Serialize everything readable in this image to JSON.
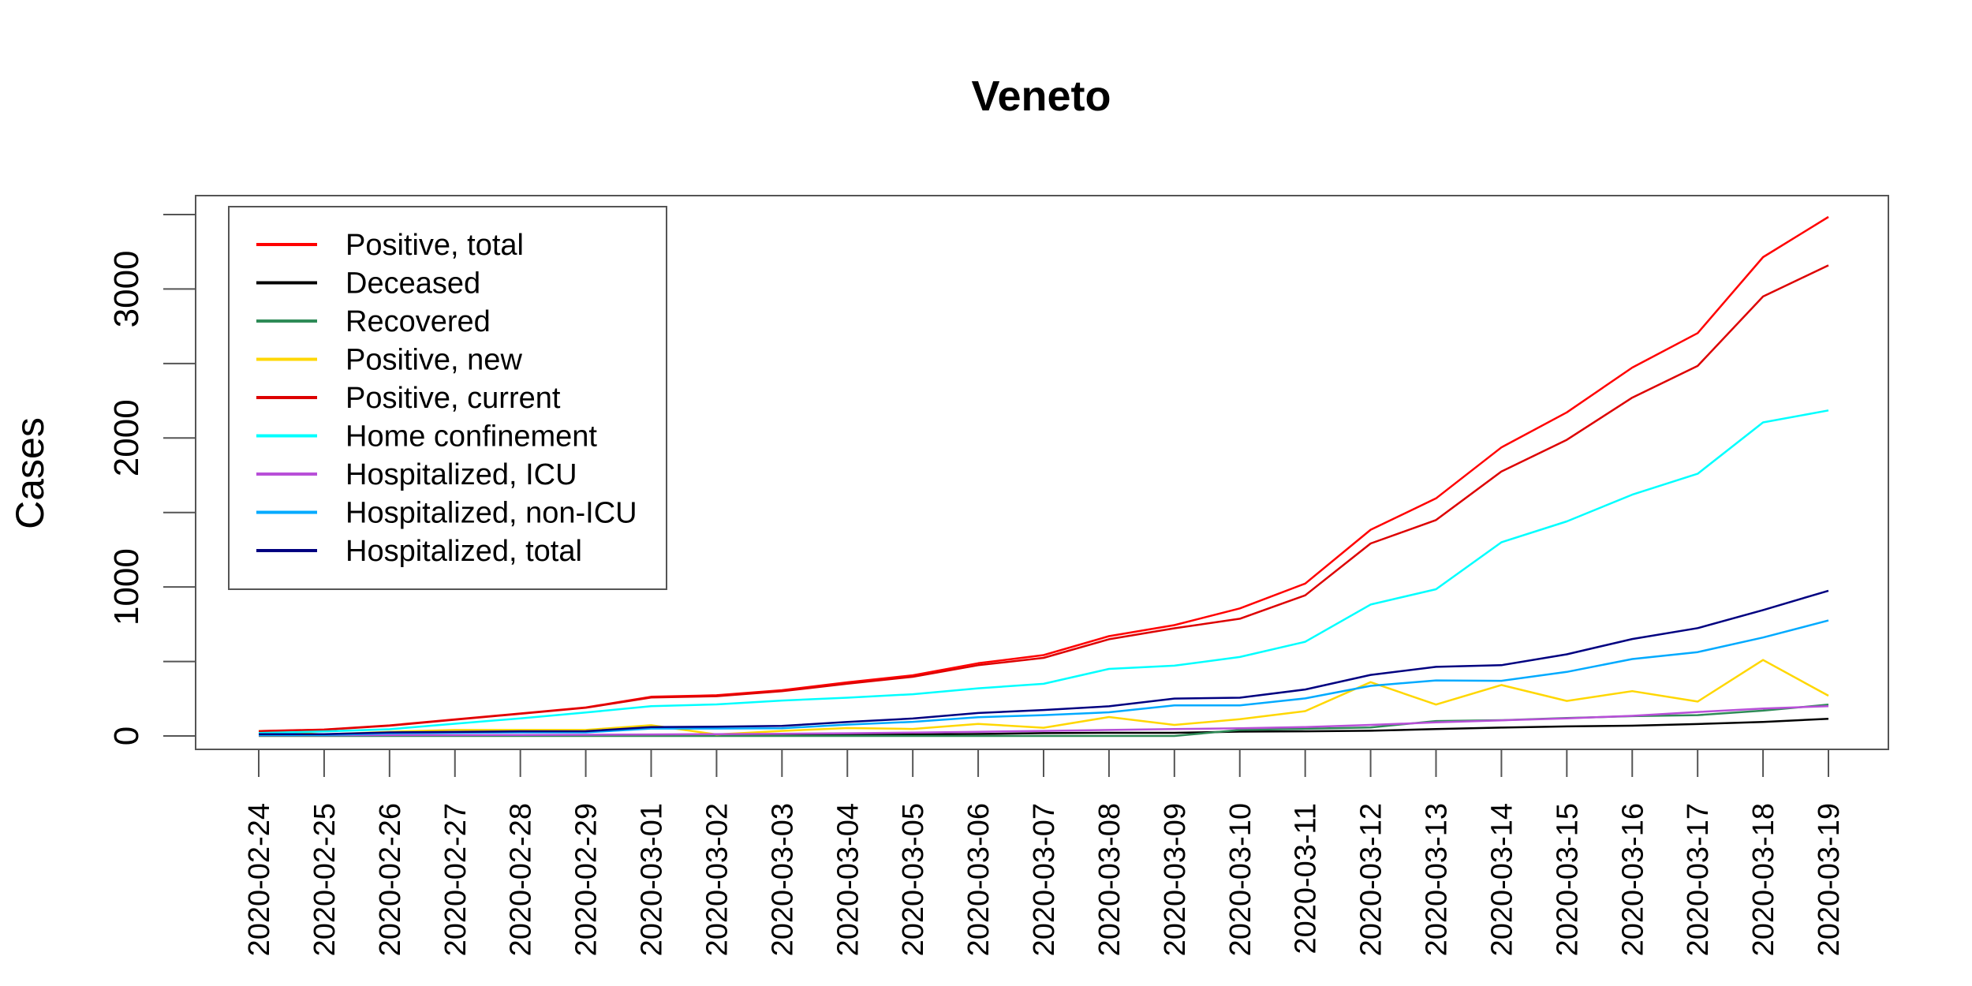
{
  "chart_data": {
    "type": "line",
    "title": "Veneto",
    "ylabel": "Cases",
    "xlabel": "",
    "ylim": [
      0,
      3500
    ],
    "yticks": [
      0,
      1000,
      2000,
      3000
    ],
    "y_minor_ticks": [
      500,
      1500,
      2500,
      3500
    ],
    "legend_position": "top-left",
    "grid": false,
    "x": [
      "2020-02-24",
      "2020-02-25",
      "2020-02-26",
      "2020-02-27",
      "2020-02-28",
      "2020-02-29",
      "2020-03-01",
      "2020-03-02",
      "2020-03-03",
      "2020-03-04",
      "2020-03-05",
      "2020-03-06",
      "2020-03-07",
      "2020-03-08",
      "2020-03-09",
      "2020-03-10",
      "2020-03-11",
      "2020-03-12",
      "2020-03-13",
      "2020-03-14",
      "2020-03-15",
      "2020-03-16",
      "2020-03-17",
      "2020-03-18",
      "2020-03-19"
    ],
    "series": [
      {
        "name": "Positive, total",
        "color": "#ff0000",
        "values": [
          33,
          43,
          71,
          111,
          151,
          191,
          263,
          273,
          307,
          360,
          407,
          488,
          543,
          670,
          744,
          856,
          1023,
          1384,
          1595,
          1937,
          2172,
          2473,
          2704,
          3214,
          3484
        ]
      },
      {
        "name": "Deceased",
        "color": "#000000",
        "values": [
          1,
          1,
          2,
          2,
          2,
          2,
          5,
          6,
          7,
          9,
          10,
          13,
          19,
          21,
          21,
          29,
          31,
          35,
          46,
          56,
          64,
          69,
          80,
          94,
          115
        ]
      },
      {
        "name": "Recovered",
        "color": "#2e8b57",
        "values": [
          0,
          0,
          0,
          0,
          0,
          0,
          0,
          0,
          0,
          0,
          0,
          0,
          0,
          0,
          0,
          40,
          48,
          57,
          100,
          106,
          120,
          133,
          140,
          170,
          210
        ]
      },
      {
        "name": "Positive, new",
        "color": "#ffd700",
        "values": [
          33,
          10,
          28,
          40,
          40,
          40,
          72,
          10,
          34,
          53,
          47,
          81,
          55,
          127,
          74,
          112,
          167,
          361,
          211,
          342,
          235,
          301,
          231,
          510,
          270
        ]
      },
      {
        "name": "Positive, current",
        "color": "#dd0000",
        "values": [
          32,
          42,
          69,
          109,
          149,
          189,
          258,
          267,
          300,
          351,
          397,
          475,
          524,
          649,
          723,
          787,
          944,
          1292,
          1449,
          1775,
          1988,
          2271,
          2484,
          2950,
          3159
        ]
      },
      {
        "name": "Home confinement",
        "color": "#00ffff",
        "values": [
          20,
          30,
          45,
          82,
          118,
          157,
          200,
          212,
          238,
          257,
          280,
          320,
          350,
          450,
          472,
          530,
          632,
          882,
          985,
          1300,
          1440,
          1620,
          1760,
          2105,
          2185
        ]
      },
      {
        "name": "Hospitalized, ICU",
        "color": "#b84fd8",
        "values": [
          5,
          5,
          6,
          6,
          7,
          8,
          10,
          12,
          15,
          18,
          22,
          28,
          34,
          40,
          46,
          52,
          60,
          74,
          91,
          105,
          118,
          135,
          161,
          184,
          200
        ]
      },
      {
        "name": "Hospitalized, non-ICU",
        "color": "#00aaff",
        "values": [
          7,
          7,
          18,
          21,
          24,
          24,
          50,
          50,
          52,
          76,
          95,
          126,
          140,
          159,
          205,
          205,
          252,
          336,
          373,
          370,
          430,
          516,
          563,
          661,
          775
        ]
      },
      {
        "name": "Hospitalized, total",
        "color": "#000080",
        "values": [
          12,
          12,
          24,
          27,
          31,
          32,
          60,
          62,
          67,
          94,
          117,
          154,
          174,
          199,
          251,
          257,
          312,
          410,
          464,
          475,
          548,
          651,
          724,
          845,
          975
        ]
      }
    ]
  }
}
